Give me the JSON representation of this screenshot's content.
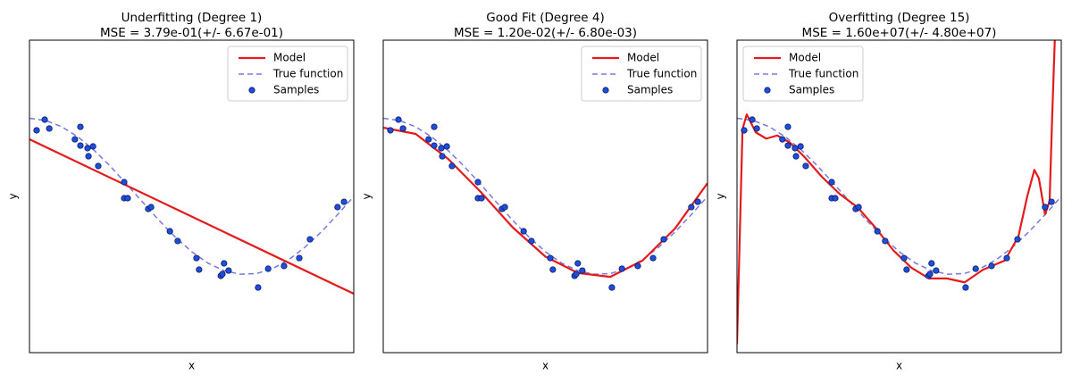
{
  "chart_data": [
    {
      "type": "line",
      "title": "Underfitting (Degree 1)",
      "subtitle": "MSE = 3.79e-01(+/- 6.67e-01)",
      "xlabel": "x",
      "ylabel": "y",
      "xlim": [
        0,
        1
      ],
      "ylim": [
        -2,
        2
      ],
      "legend": "upper right",
      "series": [
        {
          "name": "Model",
          "color": "#e41a1c",
          "kind": "line",
          "dashed": false,
          "x": [
            0,
            1
          ],
          "values": [
            0.731,
            -1.246
          ]
        },
        {
          "name": "True function",
          "color": "#7878e0",
          "kind": "line",
          "dashed": true,
          "x": [
            0,
            0.05,
            0.1,
            0.15,
            0.2,
            0.25,
            0.3,
            0.35,
            0.4,
            0.45,
            0.5,
            0.55,
            0.6,
            0.65,
            0.7,
            0.75,
            0.8,
            0.85,
            0.9,
            0.95,
            1
          ],
          "values": [
            1,
            0.972,
            0.891,
            0.76,
            0.588,
            0.383,
            0.156,
            -0.078,
            -0.309,
            -0.522,
            -0.707,
            -0.853,
            -0.951,
            -0.996,
            -0.988,
            -0.924,
            -0.809,
            -0.649,
            -0.454,
            -0.233,
            0
          ]
        },
        {
          "name": "Samples",
          "color": "#1f4fd6",
          "kind": "scatter",
          "x": [
            0.022,
            0.047,
            0.061,
            0.14,
            0.157,
            0.157,
            0.179,
            0.196,
            0.182,
            0.212,
            0.292,
            0.292,
            0.303,
            0.366,
            0.375,
            0.433,
            0.457,
            0.515,
            0.523,
            0.59,
            0.595,
            0.6,
            0.614,
            0.705,
            0.736,
            0.785,
            0.832,
            0.865,
            0.95,
            0.97
          ],
          "values": [
            0.846,
            0.983,
            0.869,
            0.731,
            0.891,
            0.651,
            0.617,
            0.64,
            0.514,
            0.389,
            0.183,
            -0.023,
            -0.023,
            -0.16,
            -0.137,
            -0.446,
            -0.571,
            -0.789,
            -0.937,
            -1.017,
            -0.994,
            -0.857,
            -0.949,
            -1.166,
            -0.926,
            -0.891,
            -0.789,
            -0.549,
            -0.137,
            -0.069
          ]
        }
      ]
    },
    {
      "type": "line",
      "title": "Good Fit (Degree 4)",
      "subtitle": "MSE = 1.20e-02(+/- 6.80e-03)",
      "xlabel": "x",
      "ylabel": "y",
      "xlim": [
        0,
        1
      ],
      "ylim": [
        -2,
        2
      ],
      "legend": "upper right",
      "series": [
        {
          "name": "Model",
          "color": "#e41a1c",
          "kind": "line",
          "dashed": false,
          "x": [
            0,
            0.1,
            0.2,
            0.3,
            0.4,
            0.5,
            0.6,
            0.7,
            0.8,
            0.9,
            1
          ],
          "values": [
            0.88,
            0.8,
            0.48,
            0.06,
            -0.4,
            -0.77,
            -0.98,
            -1.03,
            -0.82,
            -0.41,
            0.17
          ]
        },
        {
          "name": "True function",
          "color": "#7878e0",
          "kind": "line",
          "dashed": true,
          "x": [
            0,
            0.05,
            0.1,
            0.15,
            0.2,
            0.25,
            0.3,
            0.35,
            0.4,
            0.45,
            0.5,
            0.55,
            0.6,
            0.65,
            0.7,
            0.75,
            0.8,
            0.85,
            0.9,
            0.95,
            1
          ],
          "values": [
            1,
            0.972,
            0.891,
            0.76,
            0.588,
            0.383,
            0.156,
            -0.078,
            -0.309,
            -0.522,
            -0.707,
            -0.853,
            -0.951,
            -0.996,
            -0.988,
            -0.924,
            -0.809,
            -0.649,
            -0.454,
            -0.233,
            0
          ]
        },
        {
          "name": "Samples",
          "color": "#1f4fd6",
          "kind": "scatter",
          "x": [
            0.022,
            0.047,
            0.061,
            0.14,
            0.157,
            0.157,
            0.179,
            0.196,
            0.182,
            0.212,
            0.292,
            0.292,
            0.303,
            0.366,
            0.375,
            0.433,
            0.457,
            0.515,
            0.523,
            0.59,
            0.595,
            0.6,
            0.614,
            0.705,
            0.736,
            0.785,
            0.832,
            0.865,
            0.95,
            0.97
          ],
          "values": [
            0.846,
            0.983,
            0.869,
            0.731,
            0.891,
            0.651,
            0.617,
            0.64,
            0.514,
            0.389,
            0.183,
            -0.023,
            -0.023,
            -0.16,
            -0.137,
            -0.446,
            -0.571,
            -0.789,
            -0.937,
            -1.017,
            -0.994,
            -0.857,
            -0.949,
            -1.166,
            -0.926,
            -0.891,
            -0.789,
            -0.549,
            -0.137,
            -0.069
          ]
        }
      ]
    },
    {
      "type": "line",
      "title": "Overfitting (Degree 15)",
      "subtitle": "MSE = 1.60e+07(+/- 4.80e+07)",
      "xlabel": "x",
      "ylabel": "y",
      "xlim": [
        0,
        1
      ],
      "ylim": [
        -2,
        2
      ],
      "legend": "upper left",
      "series": [
        {
          "name": "Model",
          "color": "#e41a1c",
          "kind": "line",
          "dashed": false,
          "x": [
            0,
            0.017,
            0.03,
            0.058,
            0.09,
            0.124,
            0.163,
            0.207,
            0.262,
            0.317,
            0.372,
            0.427,
            0.482,
            0.537,
            0.592,
            0.647,
            0.702,
            0.758,
            0.826,
            0.868,
            0.895,
            0.917,
            0.931,
            0.95,
            0.964,
            0.972,
            0.98
          ],
          "values": [
            -1.89,
            0.86,
            1.05,
            0.82,
            0.74,
            0.78,
            0.69,
            0.51,
            0.25,
            0.03,
            -0.14,
            -0.4,
            -0.69,
            -0.91,
            -1.05,
            -1.05,
            -1.1,
            -0.94,
            -0.82,
            -0.51,
            0,
            0.34,
            0.23,
            -0.23,
            -0.06,
            1.03,
            2
          ]
        },
        {
          "name": "True function",
          "color": "#7878e0",
          "kind": "line",
          "dashed": true,
          "x": [
            0,
            0.05,
            0.1,
            0.15,
            0.2,
            0.25,
            0.3,
            0.35,
            0.4,
            0.45,
            0.5,
            0.55,
            0.6,
            0.65,
            0.7,
            0.75,
            0.8,
            0.85,
            0.9,
            0.95,
            1
          ],
          "values": [
            1,
            0.972,
            0.891,
            0.76,
            0.588,
            0.383,
            0.156,
            -0.078,
            -0.309,
            -0.522,
            -0.707,
            -0.853,
            -0.951,
            -0.996,
            -0.988,
            -0.924,
            -0.809,
            -0.649,
            -0.454,
            -0.233,
            0
          ]
        },
        {
          "name": "Samples",
          "color": "#1f4fd6",
          "kind": "scatter",
          "x": [
            0.022,
            0.047,
            0.061,
            0.14,
            0.157,
            0.157,
            0.179,
            0.196,
            0.182,
            0.212,
            0.292,
            0.292,
            0.303,
            0.366,
            0.375,
            0.433,
            0.457,
            0.515,
            0.523,
            0.59,
            0.595,
            0.6,
            0.614,
            0.705,
            0.736,
            0.785,
            0.832,
            0.865,
            0.95,
            0.97
          ],
          "values": [
            0.846,
            0.983,
            0.869,
            0.731,
            0.891,
            0.651,
            0.617,
            0.64,
            0.514,
            0.389,
            0.183,
            -0.023,
            -0.023,
            -0.16,
            -0.137,
            -0.446,
            -0.571,
            -0.789,
            -0.937,
            -1.017,
            -0.994,
            -0.857,
            -0.949,
            -1.166,
            -0.926,
            -0.891,
            -0.789,
            -0.549,
            -0.137,
            -0.069
          ]
        }
      ]
    }
  ]
}
